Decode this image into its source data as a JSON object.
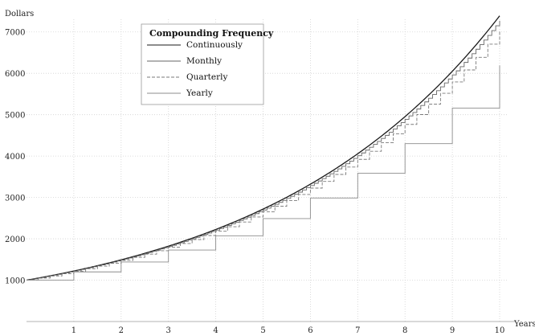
{
  "chart_data": {
    "type": "line",
    "title": "",
    "xlabel": "Years",
    "ylabel": "Dollars",
    "xlim": [
      0,
      10
    ],
    "ylim": [
      0,
      7500
    ],
    "x_ticks": [
      1,
      2,
      3,
      4,
      5,
      6,
      7,
      8,
      9,
      10
    ],
    "y_ticks": [
      1000,
      2000,
      3000,
      4000,
      5000,
      6000,
      7000
    ],
    "grid": true,
    "legend": {
      "title": "Compounding Frequency",
      "placement": "top-center"
    },
    "principal": 1000,
    "annual_rate": 0.2,
    "series": [
      {
        "name": "Continuously",
        "compounding_per_year": "continuous",
        "color": "#1a1a1a",
        "dash": ""
      },
      {
        "name": "Monthly",
        "compounding_per_year": 12,
        "color": "#666666",
        "dash": ""
      },
      {
        "name": "Quarterly",
        "compounding_per_year": 4,
        "color": "#7a7a7a",
        "dash": "4 2"
      },
      {
        "name": "Yearly",
        "compounding_per_year": 1,
        "color": "#8c8c8c",
        "dash": ""
      }
    ]
  }
}
